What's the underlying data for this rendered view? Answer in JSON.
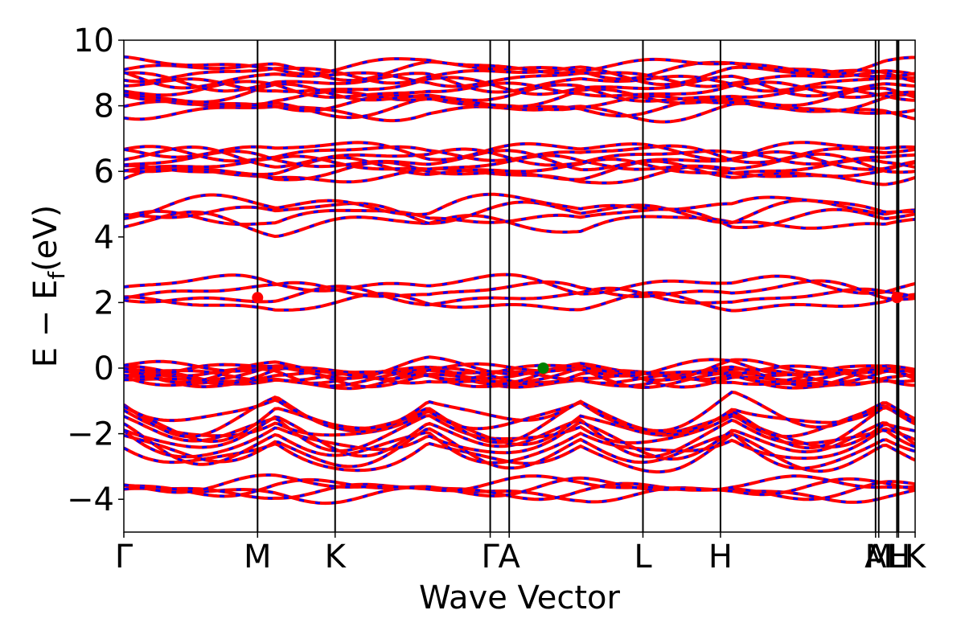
{
  "chart_data": {
    "type": "line",
    "xlabel": "Wave Vector",
    "ylabel": "E − E",
    "ylabel_sub": "f",
    "ylabel_unit": "(eV)",
    "ylim": [
      -5,
      10
    ],
    "yticks": [
      -4,
      -2,
      0,
      2,
      4,
      6,
      8,
      10
    ],
    "ytick_labels": [
      "−4",
      "−2",
      "0",
      "2",
      "4",
      "6",
      "8",
      "10"
    ],
    "xlim": [
      0,
      10.0
    ],
    "kpoints": [
      {
        "label": "Γ",
        "x": 0.0
      },
      {
        "label": "M",
        "x": 1.69
      },
      {
        "label": "K",
        "x": 2.67
      },
      {
        "label": "Γ",
        "x": 4.63
      },
      {
        "label": "A",
        "x": 4.87
      },
      {
        "label": "L",
        "x": 6.56
      },
      {
        "label": "H",
        "x": 7.54
      },
      {
        "label": "A",
        "x": 9.5
      },
      {
        "label": "M",
        "x": 9.54
      },
      {
        "label": "L",
        "x": 9.77
      },
      {
        "label": "H",
        "x": 9.79
      },
      {
        "label": "K",
        "x": 10.0
      }
    ],
    "series_colors": {
      "spin_up": "#ff0000",
      "spin_down": "#0000ff"
    },
    "band_groups": [
      {
        "e_gamma": -3.65,
        "e_mid": -3.75,
        "spread": 0.28,
        "count": 4
      },
      {
        "e_gamma": -1.6,
        "e_mid": -2.9,
        "spread": 1.3,
        "count": 10
      },
      {
        "e_gamma": -0.1,
        "e_mid": -0.4,
        "spread": 0.35,
        "count": 10
      },
      {
        "e_gamma": 2.2,
        "e_mid": 2.4,
        "spread": 0.6,
        "count": 4
      },
      {
        "e_gamma": 4.55,
        "e_mid": 5.0,
        "spread": 0.55,
        "count": 4
      },
      {
        "e_gamma": 6.2,
        "e_mid": 6.4,
        "spread": 0.8,
        "count": 8
      },
      {
        "e_gamma": 8.6,
        "e_mid": 8.4,
        "spread": 1.4,
        "count": 12
      }
    ],
    "markers": [
      {
        "name": "cbm-marker-1",
        "x": 1.69,
        "y": 2.15,
        "color": "#ff0000"
      },
      {
        "name": "cbm-marker-2",
        "x": 9.77,
        "y": 2.15,
        "color": "#ff0000"
      },
      {
        "name": "vbm-marker",
        "x": 5.3,
        "y": 0.0,
        "color": "#008000"
      }
    ]
  }
}
